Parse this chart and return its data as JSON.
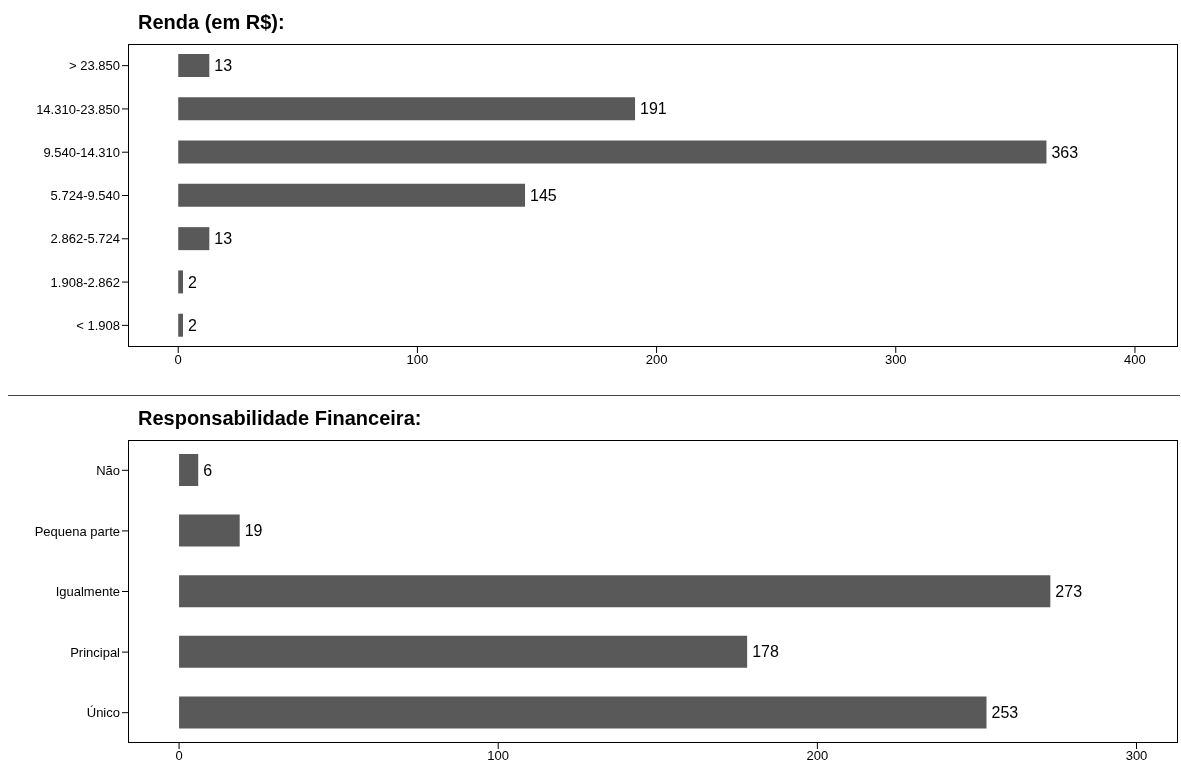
{
  "chart_data": [
    {
      "type": "bar",
      "orientation": "horizontal",
      "title": "Renda (em R$):",
      "categories": [
        "> 23.850",
        "14.310-23.850",
        "9.540-14.310",
        "5.724-9.540",
        "2.862-5.724",
        "1.908-2.862",
        "< 1.908"
      ],
      "values": [
        13,
        191,
        363,
        145,
        13,
        2,
        2
      ],
      "color": "#595959",
      "xlim": [
        -21,
        418
      ],
      "xticks": [
        0,
        100,
        200,
        300,
        400
      ],
      "data_labels": true
    },
    {
      "type": "bar",
      "orientation": "horizontal",
      "title": "Responsabilidade Financeira:",
      "categories": [
        "Não",
        "Pequena parte",
        "Igualmente",
        "Principal",
        "Único"
      ],
      "values": [
        6,
        19,
        273,
        178,
        253
      ],
      "color": "#595959",
      "xlim": [
        -16,
        313
      ],
      "xticks": [
        0,
        100,
        200,
        300
      ],
      "data_labels": true
    }
  ]
}
